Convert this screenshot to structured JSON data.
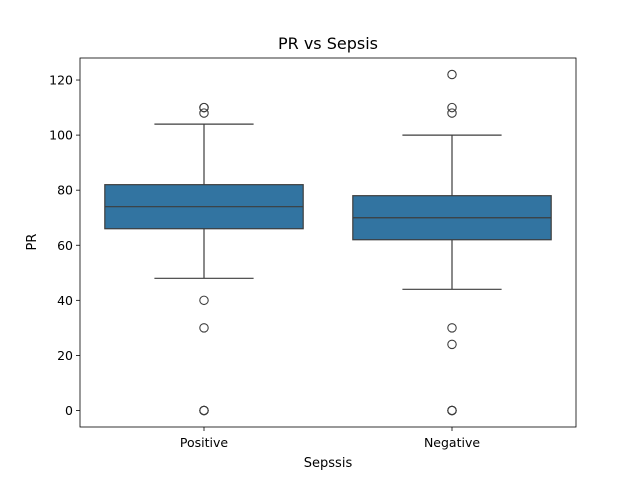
{
  "chart_data": {
    "type": "boxplot",
    "title": "PR vs Sepsis",
    "xlabel": "Sepssis",
    "ylabel": "PR",
    "categories": [
      "Positive",
      "Negative"
    ],
    "boxes": [
      {
        "category": "Positive",
        "q1": 66,
        "median": 74,
        "q3": 82,
        "whisker_low": 48,
        "whisker_high": 104,
        "outliers": [
          0,
          0,
          0,
          30,
          40,
          108,
          110,
          110
        ]
      },
      {
        "category": "Negative",
        "q1": 62,
        "median": 70,
        "q3": 78,
        "whisker_low": 44,
        "whisker_high": 100,
        "outliers": [
          0,
          0,
          0,
          24,
          30,
          108,
          110,
          122
        ]
      }
    ],
    "ylim": [
      -6,
      128
    ],
    "yticks": [
      0,
      20,
      40,
      60,
      80,
      100,
      120
    ],
    "grid": false,
    "box_color": "#3274a1",
    "line_color": "#3d3d3d"
  }
}
